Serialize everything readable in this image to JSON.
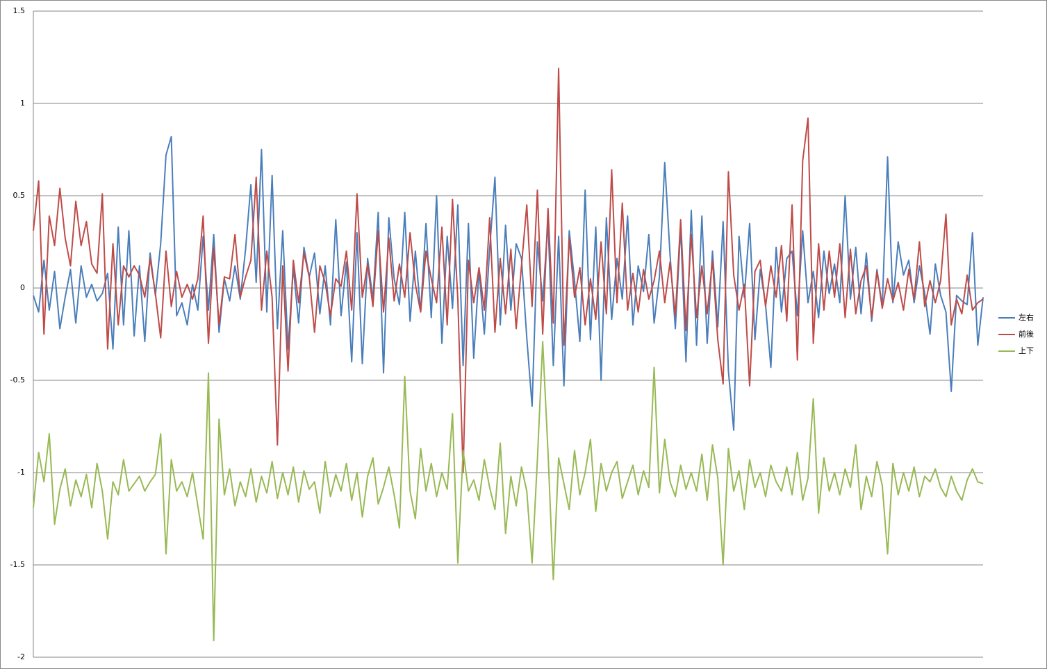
{
  "chart_data": {
    "type": "line",
    "ylim": [
      -2,
      1.5
    ],
    "yticks": [
      1.5,
      1,
      0.5,
      0,
      -0.5,
      -1,
      -1.5,
      -2
    ],
    "grid": true,
    "legend": "right",
    "series": [
      {
        "name": "左右",
        "color": "#4a7ebb",
        "values": [
          -0.04,
          -0.13,
          0.15,
          -0.12,
          0.09,
          -0.22,
          -0.05,
          0.1,
          -0.19,
          0.12,
          -0.05,
          0.02,
          -0.07,
          -0.03,
          0.08,
          -0.33,
          0.33,
          -0.2,
          0.31,
          -0.26,
          0.12,
          -0.29,
          0.19,
          -0.04,
          0.24,
          0.72,
          0.82,
          -0.15,
          -0.08,
          -0.2,
          0.02,
          -0.12,
          0.28,
          -0.12,
          0.29,
          -0.24,
          0.05,
          -0.07,
          0.12,
          -0.06,
          0.21,
          0.56,
          0.03,
          0.75,
          -0.13,
          0.61,
          -0.22,
          0.31,
          -0.33,
          0.11,
          -0.19,
          0.22,
          0.06,
          0.19,
          -0.14,
          0.12,
          -0.2,
          0.37,
          -0.15,
          0.14,
          -0.4,
          0.3,
          -0.41,
          0.16,
          -0.06,
          0.41,
          -0.46,
          0.38,
          0.05,
          -0.09,
          0.41,
          -0.18,
          0.2,
          -0.13,
          0.35,
          -0.16,
          0.5,
          -0.3,
          0.28,
          -0.11,
          0.45,
          -0.42,
          0.35,
          -0.38,
          0.1,
          -0.25,
          0.21,
          0.6,
          -0.2,
          0.34,
          -0.12,
          0.24,
          0.16,
          -0.27,
          -0.64,
          0.25,
          -0.07,
          0.36,
          -0.42,
          0.28,
          -0.53,
          0.31,
          0.04,
          -0.29,
          0.53,
          -0.28,
          0.33,
          -0.5,
          0.38,
          -0.17,
          0.16,
          -0.06,
          0.39,
          -0.2,
          0.12,
          -0.02,
          0.29,
          -0.19,
          0.06,
          0.68,
          0.18,
          -0.22,
          0.33,
          -0.4,
          0.42,
          -0.31,
          0.39,
          -0.3,
          0.2,
          -0.21,
          0.36,
          -0.45,
          -0.77,
          0.28,
          -0.05,
          0.35,
          -0.28,
          0.1,
          -0.09,
          -0.43,
          0.22,
          -0.13,
          0.16,
          0.2,
          -0.15,
          0.31,
          -0.08,
          0.09,
          -0.16,
          0.2,
          -0.03,
          0.13,
          -0.08,
          0.5,
          -0.06,
          0.22,
          -0.14,
          0.19,
          -0.18,
          0.1,
          -0.1,
          0.71,
          -0.08,
          0.25,
          0.07,
          0.15,
          -0.08,
          0.12,
          -0.03,
          -0.25,
          0.13,
          -0.04,
          -0.13,
          -0.56,
          -0.04,
          -0.07,
          -0.09,
          0.3,
          -0.31,
          -0.05
        ]
      },
      {
        "name": "前後",
        "color": "#be4b48",
        "values": [
          0.31,
          0.58,
          -0.25,
          0.39,
          0.23,
          0.54,
          0.27,
          0.12,
          0.47,
          0.23,
          0.36,
          0.13,
          0.08,
          0.51,
          -0.33,
          0.24,
          -0.2,
          0.12,
          0.06,
          0.12,
          0.07,
          -0.05,
          0.16,
          -0.03,
          -0.27,
          0.2,
          -0.1,
          0.09,
          -0.05,
          0.02,
          -0.06,
          0.05,
          0.39,
          -0.3,
          0.22,
          -0.2,
          0.06,
          0.05,
          0.29,
          -0.05,
          0.06,
          0.15,
          0.6,
          -0.12,
          0.2,
          -0.05,
          -0.85,
          0.12,
          -0.45,
          0.15,
          -0.08,
          0.19,
          0.06,
          -0.24,
          0.12,
          0.03,
          -0.15,
          0.05,
          0.01,
          0.2,
          -0.12,
          0.51,
          -0.05,
          0.13,
          -0.1,
          0.31,
          -0.13,
          0.27,
          -0.07,
          0.13,
          -0.05,
          0.3,
          0.02,
          -0.13,
          0.2,
          0.05,
          -0.08,
          0.33,
          -0.2,
          0.48,
          -0.06,
          -1.0,
          0.15,
          -0.08,
          0.11,
          -0.12,
          0.38,
          -0.24,
          0.16,
          -0.14,
          0.21,
          -0.22,
          0.12,
          0.45,
          -0.1,
          0.53,
          -0.25,
          0.43,
          -0.19,
          1.19,
          -0.31,
          0.27,
          -0.05,
          0.11,
          -0.2,
          0.05,
          -0.17,
          0.25,
          -0.14,
          0.64,
          -0.08,
          0.46,
          -0.12,
          0.08,
          -0.13,
          0.1,
          -0.06,
          0.04,
          0.2,
          -0.08,
          0.14,
          -0.15,
          0.37,
          -0.23,
          0.29,
          -0.16,
          0.12,
          -0.14,
          0.15,
          -0.28,
          -0.52,
          0.63,
          0.07,
          -0.12,
          0.02,
          -0.53,
          0.09,
          0.15,
          -0.1,
          0.12,
          -0.05,
          0.23,
          -0.18,
          0.45,
          -0.39,
          0.69,
          0.92,
          -0.3,
          0.24,
          -0.12,
          0.2,
          -0.05,
          0.24,
          -0.16,
          0.21,
          -0.14,
          0.04,
          0.12,
          -0.16,
          0.09,
          -0.11,
          0.05,
          -0.07,
          0.03,
          -0.12,
          0.1,
          -0.06,
          0.25,
          -0.1,
          0.04,
          -0.08,
          0.04,
          0.4,
          -0.2,
          -0.06,
          -0.14,
          0.07,
          -0.12,
          -0.08,
          -0.06
        ]
      },
      {
        "name": "上下",
        "color": "#98b954",
        "values": [
          -1.19,
          -0.89,
          -1.05,
          -0.79,
          -1.28,
          -1.09,
          -0.98,
          -1.18,
          -1.04,
          -1.13,
          -1.01,
          -1.19,
          -0.95,
          -1.1,
          -1.36,
          -1.05,
          -1.12,
          -0.93,
          -1.1,
          -1.06,
          -1.02,
          -1.1,
          -1.05,
          -1.01,
          -0.79,
          -1.44,
          -0.93,
          -1.1,
          -1.05,
          -1.13,
          -1.0,
          -1.18,
          -1.36,
          -0.46,
          -1.91,
          -0.71,
          -1.12,
          -0.98,
          -1.18,
          -1.05,
          -1.13,
          -0.98,
          -1.16,
          -1.02,
          -1.11,
          -0.94,
          -1.14,
          -1.0,
          -1.12,
          -0.97,
          -1.16,
          -0.99,
          -1.09,
          -1.05,
          -1.22,
          -0.94,
          -1.13,
          -1.01,
          -1.1,
          -0.95,
          -1.15,
          -1.0,
          -1.24,
          -1.02,
          -0.92,
          -1.17,
          -1.08,
          -0.97,
          -1.12,
          -1.3,
          -0.48,
          -1.1,
          -1.25,
          -0.87,
          -1.1,
          -0.95,
          -1.13,
          -1.0,
          -1.09,
          -0.68,
          -1.49,
          -0.88,
          -1.1,
          -1.04,
          -1.15,
          -0.93,
          -1.08,
          -1.2,
          -0.84,
          -1.33,
          -1.02,
          -1.18,
          -0.97,
          -1.1,
          -1.49,
          -0.93,
          -0.29,
          -0.89,
          -1.58,
          -0.92,
          -1.06,
          -1.2,
          -0.88,
          -1.12,
          -1.0,
          -0.82,
          -1.21,
          -0.95,
          -1.1,
          -1.0,
          -0.94,
          -1.14,
          -1.05,
          -0.96,
          -1.12,
          -0.99,
          -1.08,
          -0.43,
          -1.11,
          -0.82,
          -1.05,
          -1.13,
          -0.96,
          -1.09,
          -1.0,
          -1.1,
          -0.9,
          -1.15,
          -0.85,
          -1.03,
          -1.5,
          -0.87,
          -1.1,
          -0.99,
          -1.2,
          -0.93,
          -1.08,
          -1.0,
          -1.13,
          -0.96,
          -1.05,
          -1.1,
          -0.97,
          -1.12,
          -0.89,
          -1.15,
          -1.03,
          -0.6,
          -1.22,
          -0.92,
          -1.1,
          -1.0,
          -1.12,
          -0.98,
          -1.08,
          -0.85,
          -1.2,
          -1.02,
          -1.13,
          -0.94,
          -1.07,
          -1.44,
          -0.95,
          -1.12,
          -1.0,
          -1.1,
          -0.97,
          -1.13,
          -1.02,
          -1.05,
          -0.98,
          -1.08,
          -1.13,
          -1.02,
          -1.1,
          -1.15,
          -1.04,
          -0.98,
          -1.05,
          -1.06
        ]
      }
    ]
  }
}
